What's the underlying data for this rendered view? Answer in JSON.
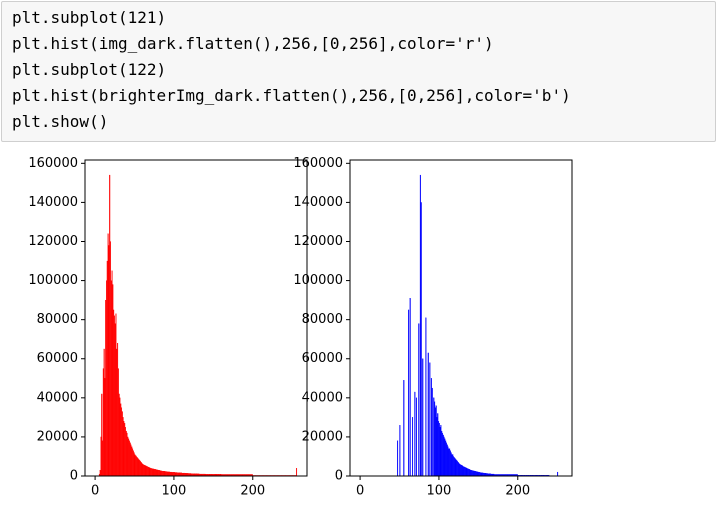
{
  "code": {
    "lines": [
      "plt.subplot(121)",
      "plt.hist(img_dark.flatten(),256,[0,256],color='r')",
      "plt.subplot(122)",
      "plt.hist(brighterImg_dark.flatten(),256,[0,256],color='b')",
      "plt.show()"
    ]
  },
  "chart_data": [
    {
      "type": "histogram",
      "color": "#ff0000",
      "bins": [
        0,
        1,
        2,
        3,
        4,
        5,
        6,
        7,
        8,
        9,
        10,
        11,
        12,
        13,
        14,
        15,
        16,
        17,
        18,
        19,
        20,
        21,
        22,
        23,
        24,
        25,
        26,
        27,
        28,
        29,
        30,
        31,
        32,
        33,
        34,
        35,
        36,
        37,
        38,
        39,
        40,
        41,
        42,
        43,
        44,
        45,
        46,
        47,
        48,
        49,
        50,
        51,
        52,
        53,
        54,
        55,
        56,
        57,
        58,
        59,
        60,
        61,
        62,
        63,
        64,
        65,
        66,
        67,
        68,
        69,
        70,
        71,
        72,
        73,
        74,
        75,
        76,
        77,
        78,
        79,
        80,
        81,
        82,
        83,
        84,
        85,
        86,
        87,
        88,
        89,
        90,
        91,
        92,
        93,
        94,
        95,
        96,
        97,
        98,
        99,
        100,
        101,
        102,
        103,
        104,
        105,
        106,
        107,
        108,
        109,
        110,
        111,
        112,
        113,
        114,
        115,
        116,
        117,
        118,
        119,
        120,
        121,
        122,
        123,
        124,
        125,
        126,
        127,
        128,
        129,
        130,
        131,
        132,
        133,
        134,
        135,
        136,
        137,
        138,
        139,
        140,
        141,
        142,
        143,
        144,
        145,
        146,
        147,
        148,
        149,
        150,
        151,
        152,
        153,
        154,
        155,
        156,
        157,
        158,
        159,
        160,
        161,
        162,
        163,
        164,
        165,
        166,
        167,
        168,
        169,
        170,
        171,
        172,
        173,
        174,
        175,
        176,
        177,
        178,
        179,
        180,
        181,
        182,
        183,
        184,
        185,
        186,
        187,
        188,
        189,
        190,
        191,
        192,
        193,
        194,
        195,
        196,
        197,
        198,
        199,
        200,
        201,
        202,
        203,
        204,
        205,
        206,
        207,
        208,
        209,
        210,
        211,
        212,
        213,
        214,
        215,
        216,
        217,
        218,
        219,
        220,
        221,
        222,
        223,
        224,
        225,
        226,
        227,
        228,
        229,
        230,
        231,
        232,
        233,
        234,
        235,
        236,
        237,
        238,
        239,
        240,
        241,
        242,
        243,
        244,
        245,
        246,
        247,
        248,
        249,
        250,
        251,
        252,
        253,
        254,
        255,
        256
      ],
      "values": [
        0,
        0,
        0,
        0,
        0,
        1000,
        3000,
        20000,
        42000,
        18000,
        55000,
        65000,
        50000,
        90000,
        100000,
        110000,
        124000,
        118000,
        154000,
        120000,
        100000,
        105000,
        98000,
        85000,
        82000,
        78000,
        83000,
        65000,
        68000,
        55000,
        42000,
        40000,
        37000,
        35000,
        33000,
        30000,
        28000,
        27000,
        25000,
        23000,
        22000,
        20000,
        19000,
        18000,
        17000,
        16000,
        15000,
        14000,
        13000,
        12000,
        11000,
        10500,
        10000,
        9500,
        9000,
        8500,
        8000,
        7500,
        7000,
        6500,
        6000,
        5800,
        5600,
        5400,
        5200,
        5000,
        4800,
        4600,
        4400,
        4200,
        4000,
        3900,
        3800,
        3700,
        3600,
        3500,
        3400,
        3300,
        3200,
        3100,
        3000,
        2900,
        2800,
        2700,
        2600,
        2500,
        2500,
        2400,
        2400,
        2300,
        2300,
        2200,
        2200,
        2100,
        2100,
        2000,
        2000,
        2000,
        1900,
        1900,
        1900,
        1800,
        1800,
        1800,
        1700,
        1700,
        1700,
        1600,
        1600,
        1600,
        1500,
        1500,
        1500,
        1500,
        1400,
        1400,
        1400,
        1400,
        1300,
        1300,
        1300,
        1300,
        1200,
        1200,
        1200,
        1200,
        1200,
        1100,
        1100,
        1100,
        1100,
        1100,
        1000,
        1000,
        1000,
        1000,
        1000,
        1000,
        1000,
        1000,
        900,
        900,
        900,
        900,
        900,
        900,
        900,
        900,
        900,
        900,
        900,
        900,
        900,
        900,
        900,
        900,
        900,
        900,
        900,
        900,
        800,
        800,
        800,
        800,
        800,
        800,
        800,
        800,
        800,
        800,
        800,
        800,
        800,
        800,
        800,
        800,
        800,
        800,
        800,
        800,
        800,
        800,
        800,
        800,
        800,
        800,
        800,
        800,
        800,
        800,
        800,
        800,
        800,
        800,
        800,
        800,
        800,
        800,
        800,
        800,
        300,
        300,
        300,
        300,
        300,
        300,
        300,
        300,
        300,
        300,
        300,
        300,
        300,
        300,
        300,
        300,
        300,
        300,
        300,
        300,
        300,
        300,
        300,
        300,
        300,
        300,
        300,
        300,
        300,
        300,
        300,
        300,
        300,
        300,
        300,
        300,
        300,
        300,
        300,
        300,
        300,
        300,
        300,
        300,
        300,
        300,
        300,
        300,
        300,
        300,
        300,
        300,
        300,
        300,
        300,
        4000
      ],
      "xlim": [
        -12.8,
        268.8
      ],
      "ylim": [
        0,
        161700
      ],
      "xticks": [
        0,
        100,
        200
      ],
      "yticks": [
        0,
        20000,
        40000,
        60000,
        80000,
        100000,
        120000,
        140000,
        160000
      ]
    },
    {
      "type": "histogram",
      "color": "#0000ff",
      "bins": [
        0,
        1,
        2,
        3,
        4,
        5,
        6,
        7,
        8,
        9,
        10,
        11,
        12,
        13,
        14,
        15,
        16,
        17,
        18,
        19,
        20,
        21,
        22,
        23,
        24,
        25,
        26,
        27,
        28,
        29,
        30,
        31,
        32,
        33,
        34,
        35,
        36,
        37,
        38,
        39,
        40,
        41,
        42,
        43,
        44,
        45,
        46,
        47,
        48,
        49,
        50,
        51,
        52,
        53,
        54,
        55,
        56,
        57,
        58,
        59,
        60,
        61,
        62,
        63,
        64,
        65,
        66,
        67,
        68,
        69,
        70,
        71,
        72,
        73,
        74,
        75,
        76,
        77,
        78,
        79,
        80,
        81,
        82,
        83,
        84,
        85,
        86,
        87,
        88,
        89,
        90,
        91,
        92,
        93,
        94,
        95,
        96,
        97,
        98,
        99,
        100,
        101,
        102,
        103,
        104,
        105,
        106,
        107,
        108,
        109,
        110,
        111,
        112,
        113,
        114,
        115,
        116,
        117,
        118,
        119,
        120,
        121,
        122,
        123,
        124,
        125,
        126,
        127,
        128,
        129,
        130,
        131,
        132,
        133,
        134,
        135,
        136,
        137,
        138,
        139,
        140,
        141,
        142,
        143,
        144,
        145,
        146,
        147,
        148,
        149,
        150,
        151,
        152,
        153,
        154,
        155,
        156,
        157,
        158,
        159,
        160,
        161,
        162,
        163,
        164,
        165,
        166,
        167,
        168,
        169,
        170,
        171,
        172,
        173,
        174,
        175,
        176,
        177,
        178,
        179,
        180,
        181,
        182,
        183,
        184,
        185,
        186,
        187,
        188,
        189,
        190,
        191,
        192,
        193,
        194,
        195,
        196,
        197,
        198,
        199,
        200,
        201,
        202,
        203,
        204,
        205,
        206,
        207,
        208,
        209,
        210,
        211,
        212,
        213,
        214,
        215,
        216,
        217,
        218,
        219,
        220,
        221,
        222,
        223,
        224,
        225,
        226,
        227,
        228,
        229,
        230,
        231,
        232,
        233,
        234,
        235,
        236,
        237,
        238,
        239,
        240,
        241,
        242,
        243,
        244,
        245,
        246,
        247,
        248,
        249,
        250,
        251,
        252,
        253,
        254,
        255,
        256
      ],
      "values": [
        0,
        0,
        0,
        0,
        0,
        0,
        0,
        0,
        0,
        0,
        0,
        0,
        0,
        0,
        0,
        0,
        0,
        0,
        0,
        0,
        0,
        0,
        0,
        0,
        0,
        0,
        0,
        0,
        0,
        0,
        0,
        0,
        0,
        0,
        0,
        0,
        0,
        0,
        0,
        0,
        0,
        0,
        0,
        0,
        0,
        0,
        0,
        18000,
        0,
        0,
        26000,
        0,
        0,
        0,
        0,
        49000,
        0,
        0,
        0,
        0,
        0,
        85000,
        0,
        91000,
        0,
        0,
        30000,
        0,
        0,
        43000,
        0,
        40000,
        0,
        0,
        78000,
        0,
        154000,
        140000,
        0,
        60000,
        0,
        0,
        0,
        81000,
        0,
        0,
        63000,
        0,
        58000,
        0,
        50000,
        45000,
        0,
        40000,
        38000,
        35000,
        36000,
        30000,
        32000,
        28000,
        27000,
        25000,
        26000,
        23000,
        22000,
        21000,
        20000,
        19000,
        18000,
        17000,
        16000,
        15000,
        14000,
        14000,
        13000,
        12000,
        11000,
        11000,
        10000,
        9500,
        9000,
        8500,
        8000,
        7500,
        7000,
        6500,
        6000,
        5800,
        5600,
        5400,
        5000,
        4800,
        4600,
        4400,
        4200,
        4000,
        3800,
        3600,
        3400,
        3200,
        3000,
        2900,
        2800,
        2700,
        2600,
        2500,
        2400,
        2300,
        2200,
        2100,
        2000,
        1900,
        1800,
        1700,
        1600,
        1600,
        1500,
        1500,
        1400,
        1400,
        1300,
        1300,
        1200,
        1200,
        1100,
        1100,
        1000,
        1000,
        1000,
        1000,
        800,
        800,
        800,
        800,
        800,
        800,
        800,
        800,
        800,
        800,
        800,
        800,
        800,
        800,
        800,
        800,
        800,
        800,
        800,
        800,
        800,
        800,
        800,
        800,
        800,
        800,
        800,
        800,
        800,
        800,
        400,
        400,
        400,
        400,
        400,
        400,
        400,
        400,
        400,
        400,
        400,
        400,
        400,
        400,
        400,
        400,
        400,
        400,
        400,
        400,
        400,
        400,
        400,
        400,
        400,
        400,
        400,
        400,
        400,
        400,
        400,
        400,
        400,
        400,
        400,
        400,
        400,
        400,
        400,
        400,
        0,
        0,
        0,
        0,
        0,
        0,
        0,
        0,
        0,
        0,
        2000,
        0,
        0,
        0,
        0,
        0
      ],
      "xlim": [
        -12.8,
        268.8
      ],
      "ylim": [
        0,
        161700
      ],
      "xticks": [
        0,
        100,
        200
      ],
      "yticks": [
        0,
        20000,
        40000,
        60000,
        80000,
        100000,
        120000,
        140000,
        160000
      ]
    }
  ]
}
